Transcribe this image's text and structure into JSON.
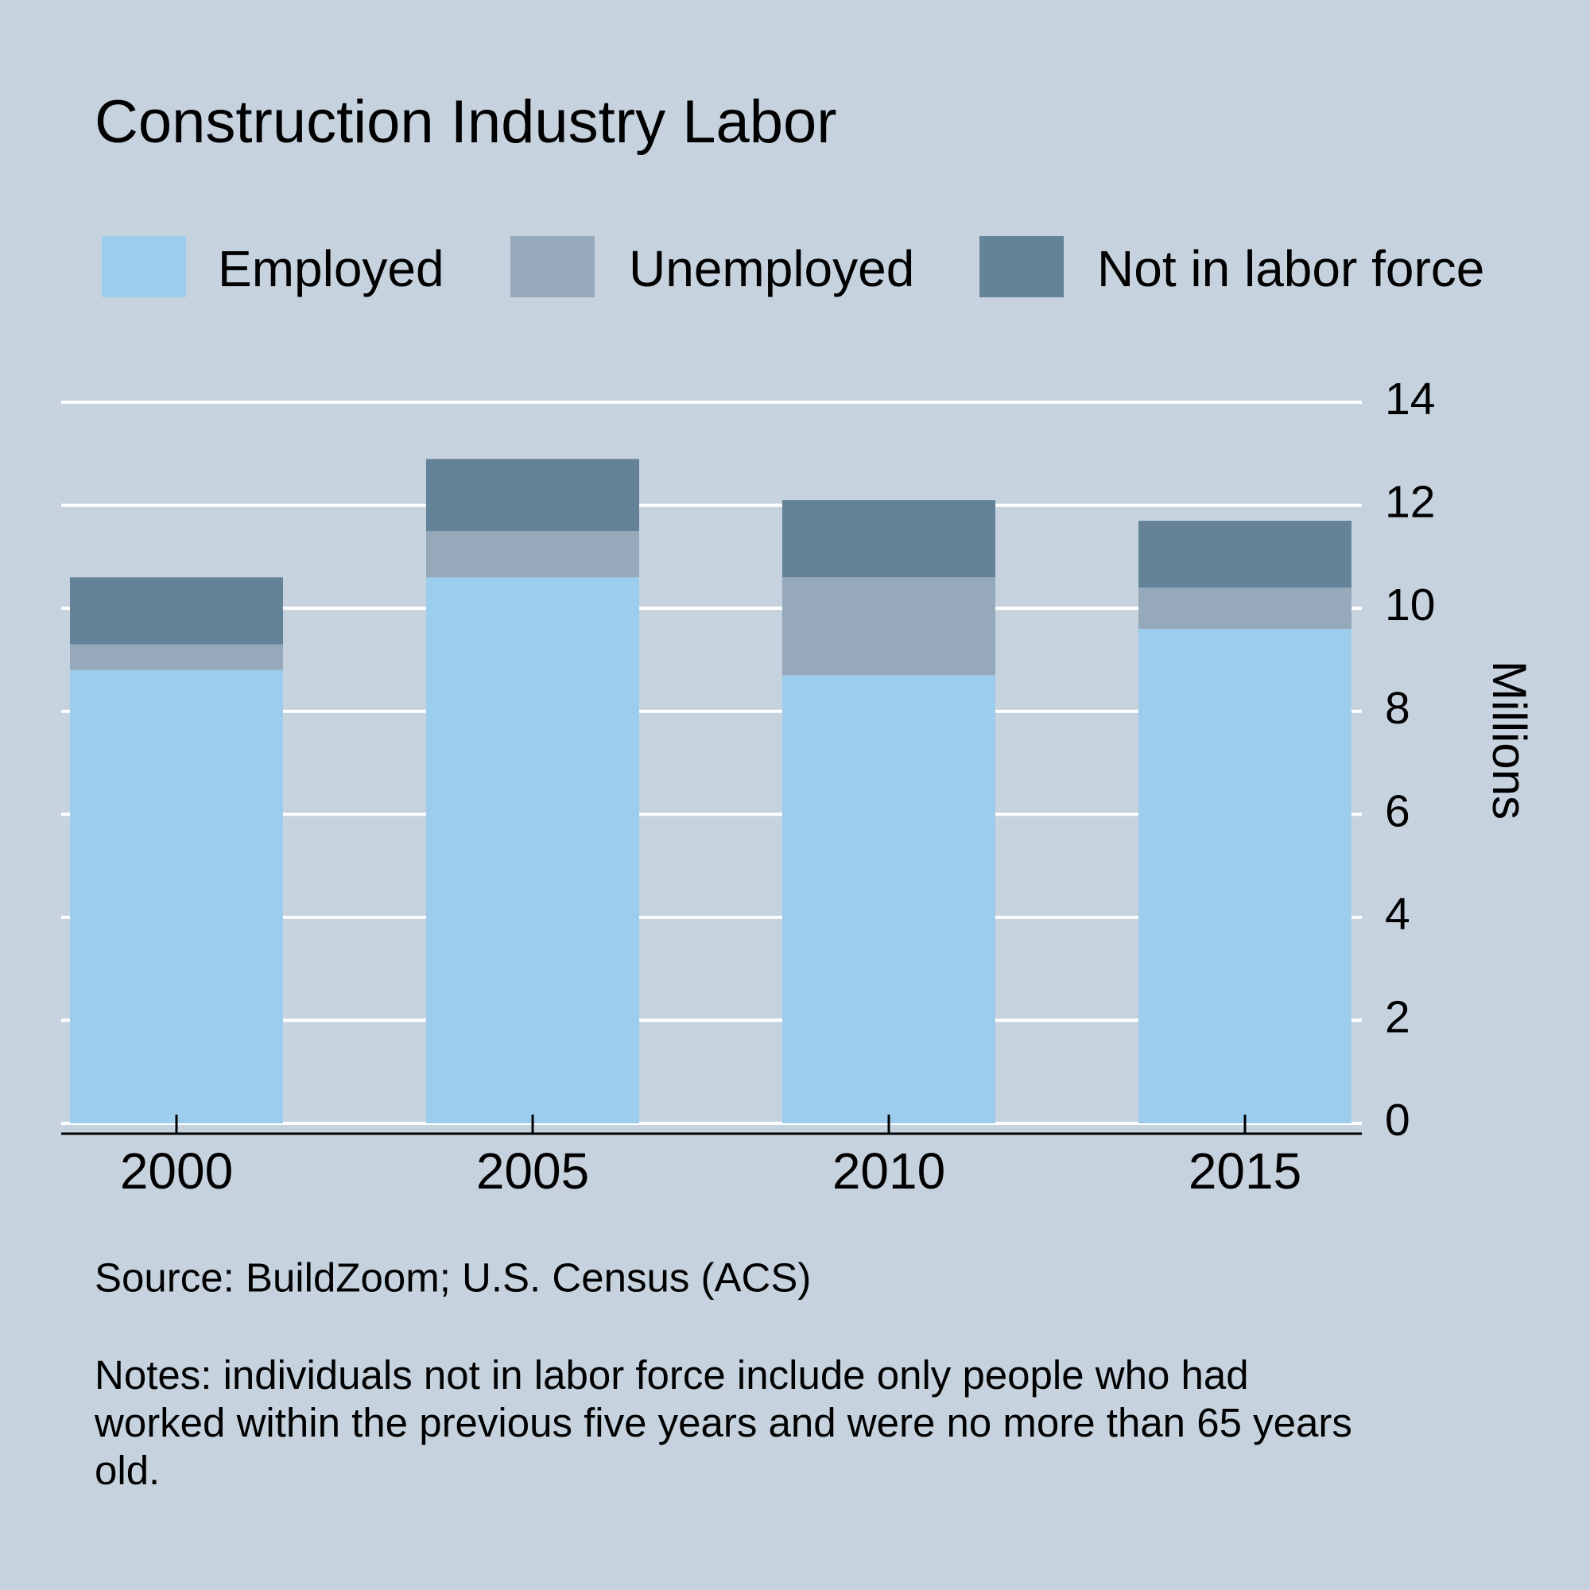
{
  "chart_data": {
    "type": "stacked_bar",
    "title": "Construction Industry Labor",
    "categories": [
      "2000",
      "2005",
      "2010",
      "2015"
    ],
    "series": [
      {
        "name": "Employed",
        "color": "#9dcdec",
        "values": [
          8.8,
          10.6,
          8.7,
          9.6
        ]
      },
      {
        "name": "Unemployed",
        "color": "#95a9ba",
        "values": [
          0.5,
          0.9,
          1.9,
          0.8
        ]
      },
      {
        "name": "Not in labor force",
        "color": "#658398",
        "values": [
          1.3,
          1.4,
          1.5,
          1.3
        ]
      }
    ],
    "y_label": "Millions",
    "ylim": [
      0,
      14
    ],
    "yticks": [
      0,
      2,
      4,
      6,
      8,
      10,
      12,
      14
    ],
    "grid": true,
    "source": "Source: BuildZoom; U.S. Census (ACS)",
    "notes": "Notes: individuals not in labor force include only people who had worked within the previous five years and were no more than 65 years old."
  }
}
